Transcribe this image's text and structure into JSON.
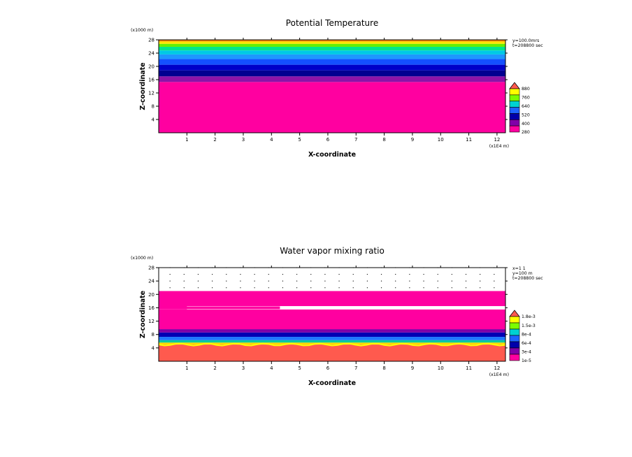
{
  "chart_data": [
    {
      "type": "heatmap",
      "title": "Potential Temperature",
      "xlabel": "X-coordinate",
      "ylabel": "Z-coordinate",
      "x_unit": "(x1E4 m)",
      "y_unit": "(x1000 m)",
      "xlim": [
        0,
        12.3
      ],
      "ylim": [
        0,
        28
      ],
      "xticks": [
        "1",
        "2",
        "3",
        "4",
        "5",
        "6",
        "7",
        "8",
        "9",
        "10",
        "11",
        "12"
      ],
      "yticks": [
        "4",
        "8",
        "12",
        "16",
        "20",
        "24",
        "28"
      ],
      "info": [
        "y=100.0mrs",
        "t=208800 sec"
      ],
      "legend": {
        "labels": [
          "880",
          "760",
          "640",
          "520",
          "400",
          "280"
        ],
        "colors": [
          "#ff5a4e",
          "#ffff00",
          "#7cfc00",
          "#00d2d2",
          "#1e64ff",
          "#0000aa",
          "#8000a8",
          "#ff00a0"
        ]
      },
      "bands": [
        {
          "z0": 0.0,
          "z1": 15.3,
          "color": "#ff00a0"
        },
        {
          "z0": 15.3,
          "z1": 17.0,
          "color": "#8c14a8"
        },
        {
          "z0": 17.0,
          "z1": 18.8,
          "color": "#000090"
        },
        {
          "z0": 18.8,
          "z1": 20.5,
          "color": "#0000c8"
        },
        {
          "z0": 20.5,
          "z1": 22.2,
          "color": "#1450ff"
        },
        {
          "z0": 22.2,
          "z1": 23.6,
          "color": "#1e96ff"
        },
        {
          "z0": 23.6,
          "z1": 24.8,
          "color": "#00c8e6"
        },
        {
          "z0": 24.8,
          "z1": 25.9,
          "color": "#00e68c"
        },
        {
          "z0": 25.9,
          "z1": 26.8,
          "color": "#64f000"
        },
        {
          "z0": 26.8,
          "z1": 27.5,
          "color": "#ffe600"
        },
        {
          "z0": 27.5,
          "z1": 28.0,
          "color": "#ff8c00"
        }
      ]
    },
    {
      "type": "heatmap",
      "title": "Water vapor mixing ratio",
      "xlabel": "X-coordinate",
      "ylabel": "Z-coordinate",
      "x_unit": "(x1E4 m)",
      "y_unit": "(x1000 m)",
      "xlim": [
        0,
        12.3
      ],
      "ylim": [
        0,
        28
      ],
      "xticks": [
        "1",
        "2",
        "3",
        "4",
        "5",
        "6",
        "7",
        "8",
        "9",
        "10",
        "11",
        "12"
      ],
      "yticks": [
        "4",
        "8",
        "12",
        "16",
        "20",
        "24",
        "28"
      ],
      "info": [
        "x=1 1",
        "y=100 m",
        "t=208800 sec"
      ],
      "legend": {
        "labels": [
          "1.8e-3",
          "1.5e-3",
          "8e-4",
          "6e-4",
          "3e-4",
          "1e-5"
        ],
        "colors": [
          "#ff5a4e",
          "#ffff00",
          "#7cfc00",
          "#00d2d2",
          "#1e64ff",
          "#0000aa",
          "#8000a8",
          "#ff00a0"
        ]
      },
      "bands": [
        {
          "z0": 0.0,
          "z1": 5.0,
          "color": "#ff5a4e"
        },
        {
          "z0": 5.0,
          "z1": 5.6,
          "color": "#ffd700"
        },
        {
          "z0": 5.6,
          "z1": 6.3,
          "color": "#00c8a0"
        },
        {
          "z0": 6.3,
          "z1": 7.3,
          "color": "#1e78ff"
        },
        {
          "z0": 7.3,
          "z1": 8.6,
          "color": "#0000b4"
        },
        {
          "z0": 8.6,
          "z1": 9.6,
          "color": "#8000a8"
        },
        {
          "z0": 9.6,
          "z1": 15.5,
          "color": "#ff00a0"
        },
        {
          "z0": 15.5,
          "z1": 16.5,
          "color": "#ffffff"
        },
        {
          "z0": 16.5,
          "z1": 21.0,
          "color": "#ff00a0"
        }
      ]
    }
  ]
}
